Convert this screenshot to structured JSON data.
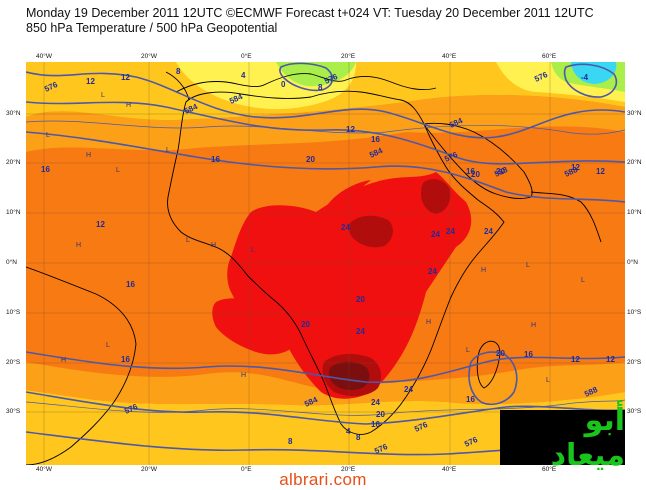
{
  "header": {
    "line1": "Monday 19 December 2011 12UTC ©ECMWF Forecast t+024 VT: Tuesday 20 December 2011 12UTC",
    "line2": "850 hPa Temperature / 500 hPa Geopotential"
  },
  "axes": {
    "lon_labels": [
      "40°W",
      "20°W",
      "0°E",
      "20°E",
      "40°E",
      "60°E"
    ],
    "lat_labels": [
      "30°N",
      "20°N",
      "10°N",
      "0°N",
      "10°S",
      "20°S",
      "30°S"
    ]
  },
  "colors": {
    "very_warm": "#7b0f0f",
    "hot_dark": "#b20d0d",
    "hot": "#f01010",
    "warm": "#f77a12",
    "mild_orange": "#fca018",
    "mild": "#ffc71d",
    "cool": "#fff250",
    "cold_green": "#a9ee4a",
    "cold_blue": "#3ad7f2",
    "contour": "#4d58a8",
    "coast": "#000000"
  },
  "contour_labels": [
    "576",
    "584",
    "584",
    "576",
    "584",
    "584",
    "576",
    "576",
    "588",
    "588",
    "576",
    "584",
    "576",
    "576",
    "588",
    "576"
  ],
  "isotherm_labels": [
    "12",
    "12",
    "8",
    "4",
    "0",
    "8",
    "12",
    "16",
    "16",
    "12",
    "20",
    "16",
    "16",
    "16",
    "20",
    "20",
    "12",
    "24",
    "24",
    "24",
    "24",
    "20",
    "20",
    "24",
    "24",
    "20",
    "24",
    "24",
    "16",
    "16",
    "12",
    "12",
    "8",
    "8",
    "4",
    "-4",
    "12",
    "16",
    "16",
    "20"
  ],
  "pressure_markers": [
    "L",
    "H",
    "L",
    "H",
    "L",
    "L",
    "H",
    "L",
    "H",
    "L",
    "H",
    "L",
    "H",
    "L",
    "H",
    "L",
    "H",
    "H",
    "L",
    "L"
  ],
  "watermark_text": "أبو ميعاد",
  "site": "albrari.com"
}
